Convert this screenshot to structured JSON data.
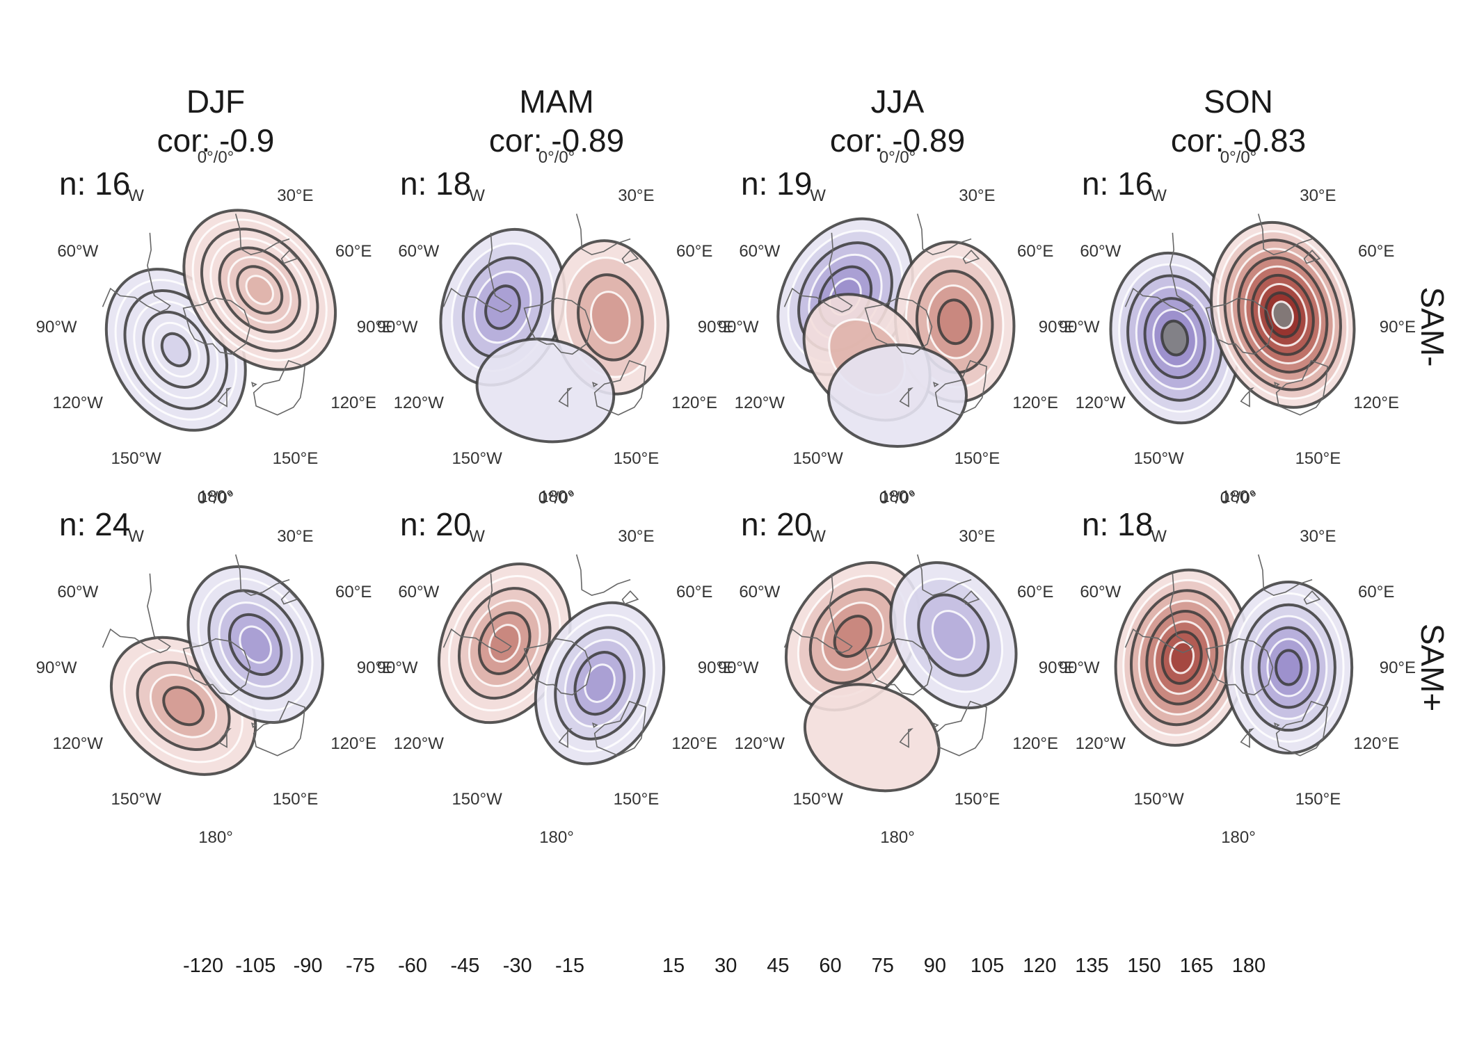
{
  "figure": {
    "columns": [
      {
        "season": "DJF",
        "cor": "cor: -0.9"
      },
      {
        "season": "MAM",
        "cor": "cor: -0.89"
      },
      {
        "season": "JJA",
        "cor": "cor: -0.89"
      },
      {
        "season": "SON",
        "cor": "cor: -0.83"
      }
    ],
    "rows": [
      {
        "label": "SAM-",
        "n": [
          "n: 16",
          "n: 18",
          "n: 19",
          "n: 16"
        ]
      },
      {
        "label": "SAM+",
        "n": [
          "n: 24",
          "n: 20",
          "n: 20",
          "n: 18"
        ]
      }
    ],
    "lon_labels": {
      "l0": "0°/0°",
      "l30e": "30°E",
      "l60e": "60°E",
      "l90e": "90°E",
      "l120e": "120°E",
      "l150e": "150°E",
      "l180": "180°",
      "l150w": "150°W",
      "l120w": "120°W",
      "l90w": "90°W",
      "l60w": "60°W",
      "l30w": "W"
    },
    "panels": [
      {
        "row": 0,
        "col": 0,
        "anomalies": [
          {
            "sign": "neg",
            "peak": -30,
            "lon": -120,
            "lat": -58,
            "levels": 7
          },
          {
            "sign": "pos",
            "peak": 45,
            "lon": 50,
            "lat": -50,
            "levels": 8
          }
        ]
      },
      {
        "row": 0,
        "col": 1,
        "anomalies": [
          {
            "sign": "neg",
            "peak": -75,
            "lon": -70,
            "lat": -50,
            "levels": 5
          },
          {
            "sign": "pos",
            "peak": 60,
            "lon": 80,
            "lat": -52,
            "levels": 4
          },
          {
            "sign": "neg",
            "peak": -30,
            "lon": -170,
            "lat": -45,
            "levels": 1
          }
        ]
      },
      {
        "row": 0,
        "col": 2,
        "anomalies": [
          {
            "sign": "neg",
            "peak": -90,
            "lon": -60,
            "lat": -48,
            "levels": 6
          },
          {
            "sign": "pos",
            "peak": 75,
            "lon": 85,
            "lat": -50,
            "levels": 5
          },
          {
            "sign": "pos",
            "peak": 45,
            "lon": -135,
            "lat": -60,
            "levels": 2
          },
          {
            "sign": "neg",
            "peak": -30,
            "lon": 180,
            "lat": -42,
            "levels": 1
          }
        ]
      },
      {
        "row": 0,
        "col": 3,
        "anomalies": [
          {
            "sign": "neg",
            "peak": -105,
            "lon": -100,
            "lat": -45,
            "levels": 7
          },
          {
            "sign": "pos",
            "peak": 165,
            "lon": 75,
            "lat": -58,
            "levels": 10
          }
        ]
      },
      {
        "row": 1,
        "col": 0,
        "anomalies": [
          {
            "sign": "pos",
            "peak": 60,
            "lon": -140,
            "lat": -55,
            "levels": 5
          },
          {
            "sign": "neg",
            "peak": -75,
            "lon": 60,
            "lat": -58,
            "levels": 6
          }
        ]
      },
      {
        "row": 1,
        "col": 1,
        "anomalies": [
          {
            "sign": "pos",
            "peak": 75,
            "lon": -65,
            "lat": -50,
            "levels": 6
          },
          {
            "sign": "neg",
            "peak": -75,
            "lon": 110,
            "lat": -58,
            "levels": 6
          }
        ]
      },
      {
        "row": 1,
        "col": 2,
        "anomalies": [
          {
            "sign": "pos",
            "peak": 75,
            "lon": -55,
            "lat": -52,
            "levels": 5
          },
          {
            "sign": "neg",
            "peak": -60,
            "lon": 60,
            "lat": -45,
            "levels": 4
          },
          {
            "sign": "pos",
            "peak": 30,
            "lon": -160,
            "lat": -38,
            "levels": 1
          }
        ]
      },
      {
        "row": 1,
        "col": 3,
        "anomalies": [
          {
            "sign": "pos",
            "peak": 120,
            "lon": -80,
            "lat": -50,
            "levels": 8
          },
          {
            "sign": "neg",
            "peak": -90,
            "lon": 90,
            "lat": -55,
            "levels": 7
          }
        ]
      }
    ],
    "colorbars": {
      "negative": {
        "ticks": [
          "-120",
          "-105",
          "-90",
          "-75",
          "-60",
          "-45",
          "-30",
          "-15"
        ],
        "colors": [
          "#808080",
          "#9b8fcc",
          "#a89ed3",
          "#b6aeda",
          "#c5bfe2",
          "#d5d1ea",
          "#e5e3f2"
        ]
      },
      "positive": {
        "ticks": [
          "15",
          "30",
          "45",
          "60",
          "75",
          "90",
          "105",
          "120",
          "135",
          "150",
          "165",
          "180"
        ],
        "colors": [
          "#f3dedb",
          "#e9c8c3",
          "#dfb2ab",
          "#d49b93",
          "#c8857c",
          "#bc6f66",
          "#b05a52",
          "#a3463f",
          "#96322e",
          "#8a2121",
          "#808080"
        ]
      }
    }
  }
}
